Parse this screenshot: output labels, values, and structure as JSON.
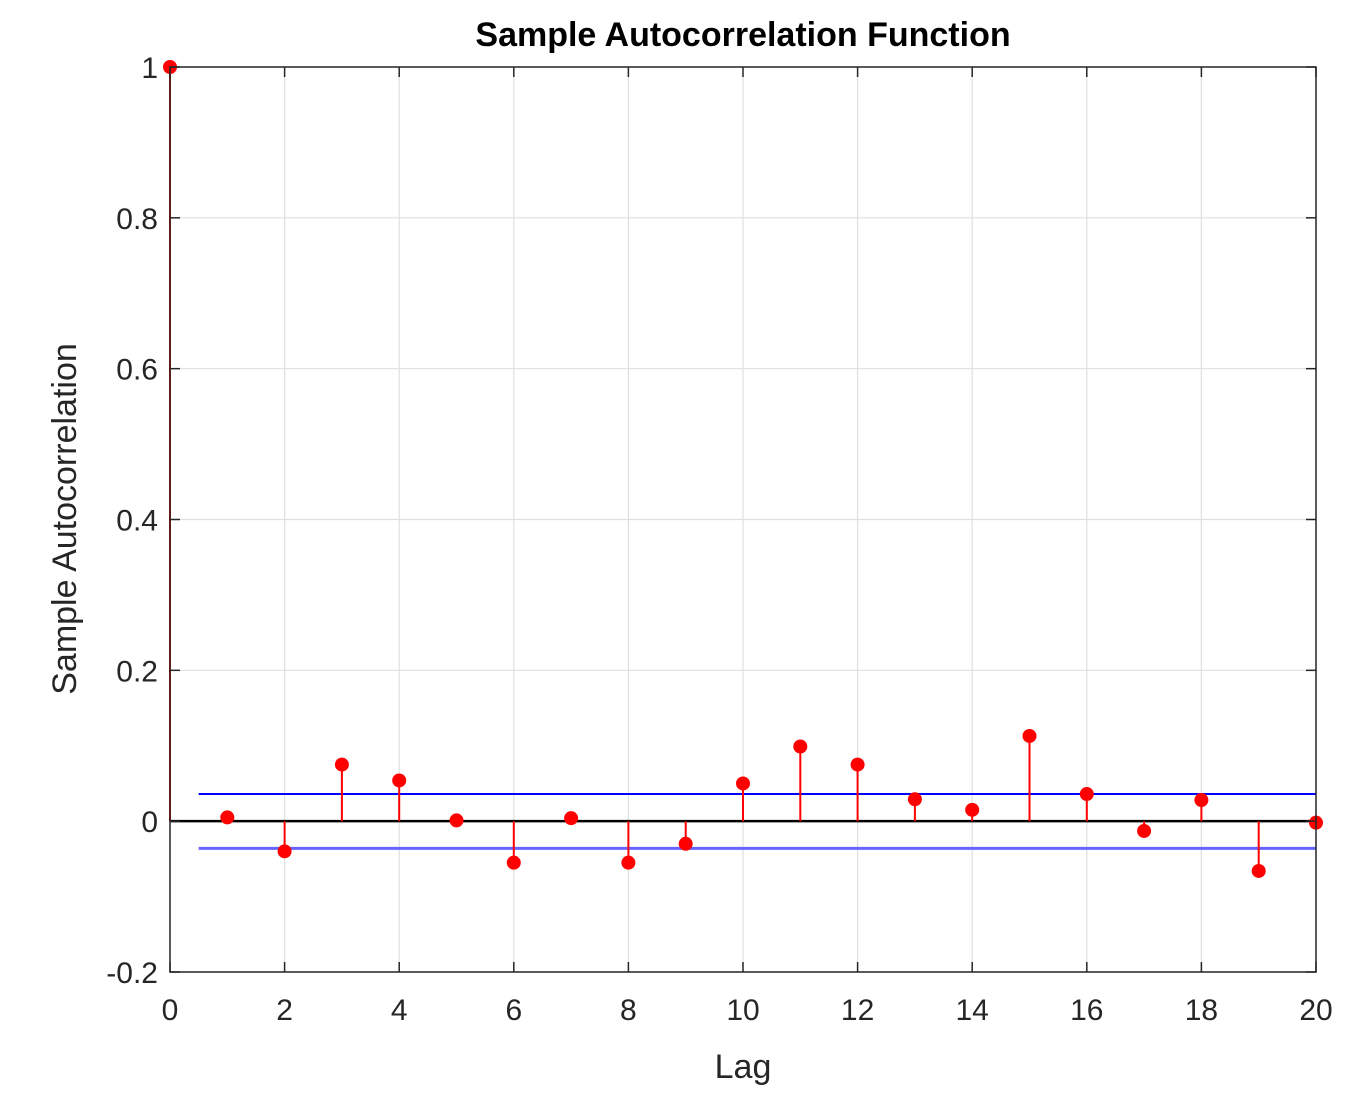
{
  "chart_data": {
    "type": "stem",
    "title": "Sample Autocorrelation Function",
    "xlabel": "Lag",
    "ylabel": "Sample Autocorrelation",
    "xlim": [
      0,
      20
    ],
    "ylim": [
      -0.2,
      1
    ],
    "xticks": [
      0,
      2,
      4,
      6,
      8,
      10,
      12,
      14,
      16,
      18,
      20
    ],
    "xtick_labels": [
      "0",
      "2",
      "4",
      "6",
      "8",
      "10",
      "12",
      "14",
      "16",
      "18",
      "20"
    ],
    "yticks": [
      -0.2,
      0,
      0.2,
      0.4,
      0.6,
      0.8,
      1
    ],
    "ytick_labels": [
      "-0.2",
      "0",
      "0.2",
      "0.4",
      "0.6",
      "0.8",
      "1"
    ],
    "grid": true,
    "series": [
      {
        "x": [
          0,
          1,
          2,
          3,
          4,
          5,
          6,
          7,
          8,
          9,
          10,
          11,
          12,
          13,
          14,
          15,
          16,
          17,
          18,
          19,
          20
        ],
        "values": [
          1,
          0.005,
          -0.04,
          0.075,
          0.054,
          0.001,
          -0.055,
          0.004,
          -0.055,
          -0.03,
          0.05,
          0.099,
          0.075,
          0.029,
          0.015,
          0.113,
          0.036,
          -0.013,
          0.028,
          -0.066,
          -0.002
        ],
        "color": "#ff0000"
      }
    ],
    "confidence_bounds": {
      "upper": 0.036,
      "lower": -0.036,
      "x_start": 0.5,
      "x_end": 20,
      "upper_color": "#0000ff",
      "lower_color": "#6666ff"
    },
    "zero_line_color": "#000000"
  }
}
